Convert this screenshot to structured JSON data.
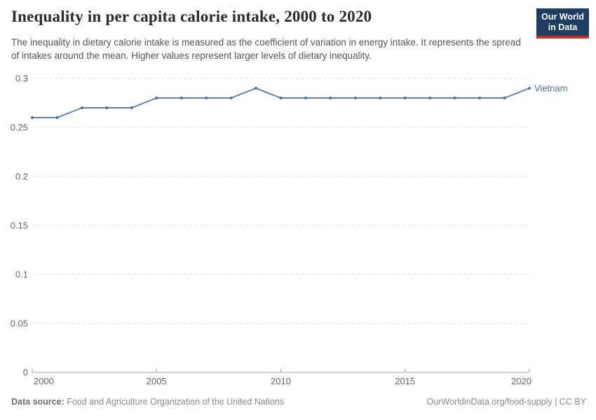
{
  "header": {
    "title": "Inequality in per capita calorie intake, 2000 to 2020",
    "subtitle": "The inequality in dietary calorie intake is measured as the coefficient of variation in energy intake. It represents the spread of intakes around the mean. Higher values represent larger levels of dietary inequality.",
    "logo": {
      "line1": "Our World",
      "line2": "in Data"
    }
  },
  "chart_data": {
    "type": "line",
    "title": "Inequality in per capita calorie intake, 2000 to 2020",
    "xlabel": "",
    "ylabel": "",
    "x": [
      2000,
      2001,
      2002,
      2003,
      2004,
      2005,
      2006,
      2007,
      2008,
      2009,
      2010,
      2011,
      2012,
      2013,
      2014,
      2015,
      2016,
      2017,
      2018,
      2019,
      2020
    ],
    "series": [
      {
        "name": "Vietnam",
        "color": "#4c6fa8",
        "values": [
          0.26,
          0.26,
          0.27,
          0.27,
          0.27,
          0.28,
          0.28,
          0.28,
          0.28,
          0.29,
          0.28,
          0.28,
          0.28,
          0.28,
          0.28,
          0.28,
          0.28,
          0.28,
          0.28,
          0.28,
          0.29
        ]
      }
    ],
    "x_ticks": [
      2000,
      2005,
      2010,
      2015,
      2020
    ],
    "y_ticks": [
      0,
      0.05,
      0.1,
      0.15,
      0.2,
      0.25,
      0.3
    ],
    "xlim": [
      2000,
      2020
    ],
    "ylim": [
      0,
      0.3
    ],
    "grid": "horizontal-dashed",
    "legend": "end-of-line-label",
    "colors": {
      "grid": "#dcdcdc",
      "axis": "#a3a3a3",
      "tick_label": "#666666"
    }
  },
  "footer": {
    "source_label": "Data source:",
    "source_value": "Food and Agriculture Organization of the United Nations",
    "credit": "OurWorldinData.org/food-supply | CC BY"
  }
}
